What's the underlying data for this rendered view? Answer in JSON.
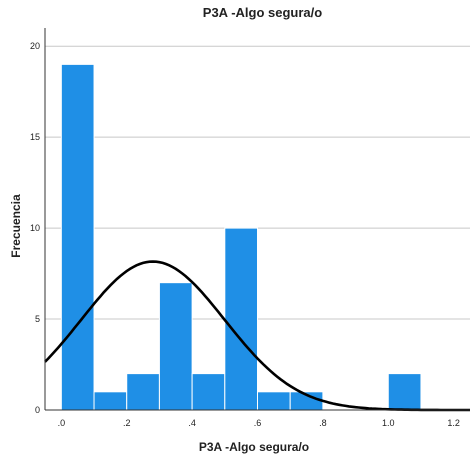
{
  "chart_data": {
    "type": "bar",
    "title": "P3A -Algo segura/o",
    "xlabel": "P3A -Algo segura/o",
    "ylabel": "Frecuencia",
    "xlim": [
      -0.05,
      1.25
    ],
    "ylim": [
      0,
      21
    ],
    "x_ticks": [
      ".0",
      ".2",
      ".4",
      ".6",
      ".8",
      "1.0",
      "1.2"
    ],
    "x_tick_values": [
      0,
      0.2,
      0.4,
      0.6,
      0.8,
      1.0,
      1.2
    ],
    "y_ticks": [
      "0",
      "5",
      "10",
      "15",
      "20"
    ],
    "y_tick_values": [
      0,
      5,
      10,
      15,
      20
    ],
    "bin_width": 0.1,
    "bins": [
      {
        "start": 0.0,
        "value": 19
      },
      {
        "start": 0.1,
        "value": 1
      },
      {
        "start": 0.2,
        "value": 2
      },
      {
        "start": 0.3,
        "value": 7
      },
      {
        "start": 0.4,
        "value": 2
      },
      {
        "start": 0.5,
        "value": 10
      },
      {
        "start": 0.6,
        "value": 1
      },
      {
        "start": 0.7,
        "value": 1
      },
      {
        "start": 1.0,
        "value": 2
      }
    ],
    "normal_curve": {
      "mean": 0.28,
      "sd": 0.22,
      "n": 45
    },
    "grid": true,
    "bar_color": "#1f8fe6",
    "curve_color": "#000000"
  }
}
